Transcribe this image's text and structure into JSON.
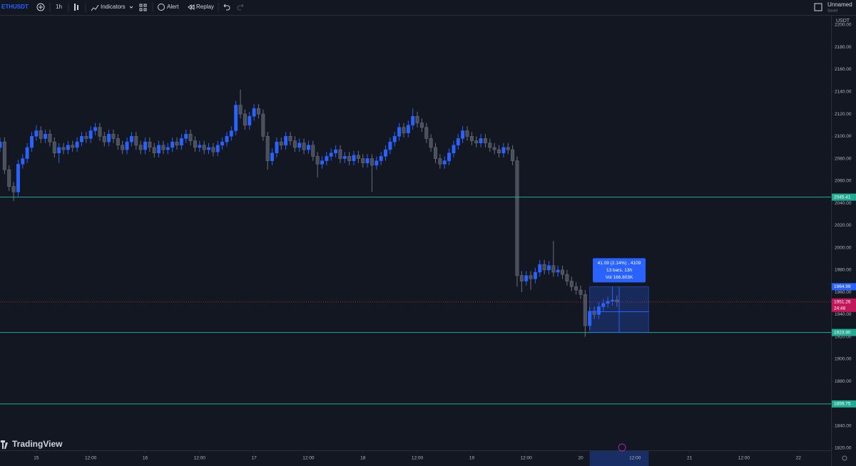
{
  "toolbar": {
    "symbol": "ETHUSDT",
    "interval": "1h",
    "indicators": "Indicators",
    "alert": "Alert",
    "replay": "Replay",
    "layout_name": "Unnamed",
    "save_state": "Saved"
  },
  "brand": "TradingView",
  "chart_data": {
    "type": "candlestick",
    "currency": "USDT",
    "grid": false,
    "up_color": "#2962ff",
    "down_color": "#4a4f5c",
    "level_color": "#22ab94",
    "x": [
      -8,
      -7,
      -6,
      -5,
      -4,
      -3,
      -2,
      -1,
      0,
      1,
      2,
      3,
      4,
      5,
      6,
      7,
      8,
      9,
      10,
      11,
      12,
      13,
      14,
      15,
      16,
      17,
      18,
      19,
      20,
      21,
      22,
      23,
      24,
      25,
      26,
      27,
      28,
      29,
      30,
      31,
      32,
      33,
      34,
      35,
      36,
      37,
      38,
      39,
      40,
      41,
      42,
      43,
      44,
      45,
      46,
      47,
      48,
      49,
      50,
      51,
      52,
      53,
      54,
      55,
      56,
      57,
      58,
      59,
      60,
      61,
      62,
      63,
      64,
      65,
      66,
      67,
      68,
      69,
      70,
      71,
      72,
      73,
      74,
      75,
      76,
      77,
      78,
      79,
      80,
      81,
      82,
      83,
      84,
      85,
      86,
      87,
      88,
      89,
      90,
      91,
      92,
      93,
      94,
      95,
      96,
      97,
      98,
      99,
      100,
      101,
      102,
      103,
      104,
      105,
      106,
      107,
      108,
      109,
      110,
      111,
      112,
      113,
      114,
      115,
      116,
      117,
      118,
      119,
      120,
      121,
      122,
      123,
      124,
      125,
      126,
      127,
      128
    ],
    "open": [
      2090,
      2095,
      2070,
      2055,
      2050,
      2075,
      2080,
      2090,
      2100,
      2105,
      2098,
      2102,
      2095,
      2085,
      2090,
      2088,
      2092,
      2090,
      2095,
      2100,
      2098,
      2105,
      2108,
      2100,
      2095,
      2102,
      2098,
      2092,
      2088,
      2095,
      2100,
      2092,
      2088,
      2095,
      2090,
      2085,
      2092,
      2088,
      2090,
      2095,
      2092,
      2098,
      2102,
      2096,
      2090,
      2092,
      2088,
      2090,
      2086,
      2092,
      2095,
      2100,
      2105,
      2128,
      2120,
      2110,
      2118,
      2125,
      2120,
      2100,
      2078,
      2085,
      2095,
      2092,
      2100,
      2096,
      2090,
      2094,
      2088,
      2092,
      2082,
      2075,
      2078,
      2082,
      2085,
      2088,
      2080,
      2082,
      2078,
      2083,
      2080,
      2076,
      2080,
      2074,
      2078,
      2082,
      2088,
      2095,
      2100,
      2108,
      2103,
      2110,
      2118,
      2112,
      2108,
      2098,
      2090,
      2080,
      2075,
      2078,
      2085,
      2092,
      2098,
      2105,
      2100,
      2096,
      2094,
      2098,
      2094,
      2090,
      2088,
      2085,
      2090,
      2088,
      2078,
      1975,
      1970,
      1975,
      1972,
      1978,
      1985,
      1980,
      1984,
      1978,
      1980,
      1976,
      1970,
      1965,
      1962,
      1958,
      1930,
      1943,
      1940,
      1947,
      1950,
      1952,
      1953
    ],
    "high": [
      2099,
      2099,
      2074,
      2059,
      2079,
      2084,
      2094,
      2104,
      2110,
      2109,
      2106,
      2106,
      2099,
      2094,
      2094,
      2096,
      2096,
      2099,
      2104,
      2104,
      2109,
      2112,
      2112,
      2104,
      2106,
      2106,
      2102,
      2096,
      2099,
      2104,
      2104,
      2096,
      2099,
      2099,
      2094,
      2096,
      2096,
      2094,
      2099,
      2099,
      2102,
      2106,
      2106,
      2100,
      2096,
      2096,
      2094,
      2094,
      2096,
      2099,
      2104,
      2109,
      2132,
      2142,
      2124,
      2122,
      2129,
      2129,
      2124,
      2104,
      2089,
      2099,
      2099,
      2104,
      2104,
      2100,
      2098,
      2098,
      2096,
      2096,
      2086,
      2082,
      2086,
      2089,
      2092,
      2092,
      2086,
      2086,
      2087,
      2087,
      2084,
      2084,
      2084,
      2082,
      2086,
      2092,
      2099,
      2104,
      2112,
      2112,
      2114,
      2125,
      2122,
      2116,
      2112,
      2102,
      2094,
      2084,
      2082,
      2089,
      2096,
      2102,
      2109,
      2109,
      2104,
      2100,
      2102,
      2102,
      2098,
      2094,
      2092,
      2094,
      2094,
      2092,
      2082,
      1979,
      1979,
      1979,
      1982,
      1989,
      1989,
      1988,
      2006,
      1984,
      1984,
      1980,
      1974,
      1969,
      1966,
      1962,
      1947,
      1947,
      1951,
      1954,
      1956,
      1965,
      1957
    ],
    "low": [
      2086,
      2066,
      2051,
      2042,
      2046,
      2071,
      2076,
      2086,
      2096,
      2094,
      2094,
      2091,
      2081,
      2076,
      2084,
      2084,
      2086,
      2086,
      2091,
      2094,
      2094,
      2101,
      2096,
      2091,
      2091,
      2094,
      2088,
      2084,
      2084,
      2091,
      2088,
      2084,
      2084,
      2086,
      2081,
      2081,
      2084,
      2084,
      2086,
      2088,
      2088,
      2094,
      2092,
      2086,
      2086,
      2084,
      2084,
      2082,
      2082,
      2088,
      2091,
      2096,
      2101,
      2116,
      2106,
      2106,
      2114,
      2116,
      2096,
      2070,
      2074,
      2081,
      2088,
      2088,
      2092,
      2086,
      2086,
      2084,
      2084,
      2078,
      2063,
      2071,
      2074,
      2078,
      2081,
      2076,
      2076,
      2074,
      2074,
      2076,
      2072,
      2072,
      2050,
      2070,
      2074,
      2078,
      2084,
      2091,
      2096,
      2099,
      2099,
      2106,
      2108,
      2104,
      2094,
      2086,
      2076,
      2071,
      2071,
      2074,
      2081,
      2088,
      2094,
      2096,
      2092,
      2090,
      2090,
      2090,
      2086,
      2084,
      2081,
      2081,
      2084,
      2074,
      1965,
      1960,
      1966,
      1962,
      1968,
      1974,
      1976,
      1976,
      1974,
      1974,
      1972,
      1966,
      1961,
      1958,
      1954,
      1920,
      1926,
      1936,
      1936,
      1943,
      1946,
      1948,
      1947
    ],
    "close": [
      2095,
      2070,
      2055,
      2050,
      2075,
      2080,
      2090,
      2100,
      2105,
      2098,
      2102,
      2095,
      2085,
      2090,
      2088,
      2092,
      2090,
      2095,
      2100,
      2098,
      2105,
      2108,
      2100,
      2095,
      2102,
      2098,
      2092,
      2088,
      2095,
      2100,
      2092,
      2088,
      2095,
      2090,
      2085,
      2092,
      2088,
      2090,
      2095,
      2092,
      2098,
      2102,
      2096,
      2090,
      2092,
      2088,
      2090,
      2086,
      2092,
      2095,
      2100,
      2105,
      2128,
      2120,
      2110,
      2118,
      2125,
      2120,
      2100,
      2078,
      2085,
      2095,
      2092,
      2100,
      2096,
      2090,
      2094,
      2088,
      2092,
      2082,
      2075,
      2078,
      2082,
      2085,
      2088,
      2080,
      2082,
      2078,
      2083,
      2080,
      2076,
      2080,
      2074,
      2078,
      2082,
      2088,
      2095,
      2100,
      2108,
      2103,
      2110,
      2118,
      2112,
      2108,
      2098,
      2090,
      2080,
      2075,
      2078,
      2085,
      2092,
      2098,
      2105,
      2100,
      2096,
      2094,
      2098,
      2094,
      2090,
      2088,
      2085,
      2090,
      2088,
      2078,
      1975,
      1970,
      1975,
      1972,
      1978,
      1985,
      1980,
      1984,
      1978,
      1980,
      1976,
      1970,
      1965,
      1962,
      1958,
      1930,
      1943,
      1940,
      1947,
      1950,
      1952,
      1953,
      1951.26
    ],
    "countdown": "24:48",
    "xlim": [
      -8,
      175.2
    ],
    "xticks": [
      {
        "value": 0,
        "label": "15"
      },
      {
        "value": 12,
        "label": "12:00"
      },
      {
        "value": 24,
        "label": "16"
      },
      {
        "value": 36,
        "label": "12:00"
      },
      {
        "value": 48,
        "label": "17"
      },
      {
        "value": 60,
        "label": "12:00"
      },
      {
        "value": 72,
        "label": "18"
      },
      {
        "value": 84,
        "label": "12:00"
      },
      {
        "value": 96,
        "label": "19"
      },
      {
        "value": 108,
        "label": "12:00"
      },
      {
        "value": 120,
        "label": "20"
      },
      {
        "value": 132,
        "label": "12:00"
      },
      {
        "value": 144,
        "label": "21"
      },
      {
        "value": 156,
        "label": "12:00"
      },
      {
        "value": 168,
        "label": "22"
      }
    ],
    "ylim": [
      1818.1,
      2208.3
    ],
    "yticks": [
      {
        "value": 1820,
        "label": "1820.00"
      },
      {
        "value": 1840,
        "label": "1840.00"
      },
      {
        "value": 1860,
        "label": "1860.00"
      },
      {
        "value": 1880,
        "label": "1880.00"
      },
      {
        "value": 1900,
        "label": "1900.00"
      },
      {
        "value": 1920,
        "label": "1920.00"
      },
      {
        "value": 1940,
        "label": "1940.00"
      },
      {
        "value": 1960,
        "label": "1960.00"
      },
      {
        "value": 1980,
        "label": "1980.00"
      },
      {
        "value": 2000,
        "label": "2000.00"
      },
      {
        "value": 2020,
        "label": "2020.00"
      },
      {
        "value": 2040,
        "label": "2040.00"
      },
      {
        "value": 2060,
        "label": "2060.00"
      },
      {
        "value": 2080,
        "label": "2080.00"
      },
      {
        "value": 2100,
        "label": "2100.00"
      },
      {
        "value": 2120,
        "label": "2120.00"
      },
      {
        "value": 2140,
        "label": "2140.00"
      },
      {
        "value": 2160,
        "label": "2160.00"
      },
      {
        "value": 2180,
        "label": "2180.00"
      },
      {
        "value": 2200,
        "label": "2200.00"
      }
    ],
    "levels": [
      2045.41,
      {
        "value": 1923.9,
        "label": "1923.90"
      },
      {
        "value": 1859.75,
        "label": "1859.75"
      }
    ],
    "measure": {
      "from": 122,
      "to": 135,
      "high": {
        "value": 1964.99,
        "label": "1964.99"
      },
      "low": 1923.9,
      "lines": [
        "41.09 (2.14%) , 4109",
        "13 bars, 13h",
        "Vol 166.803K"
      ]
    }
  }
}
